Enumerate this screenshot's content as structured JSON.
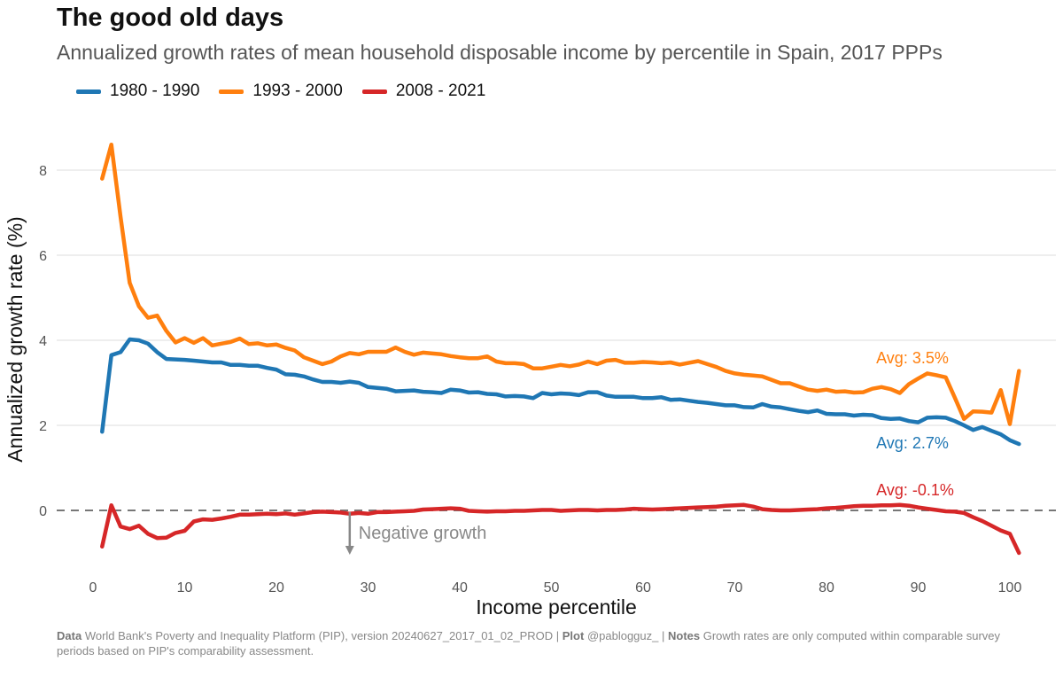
{
  "title": "The good old days",
  "subtitle": "Annualized growth rates of mean household disposable income by percentile in Spain, 2017 PPPs",
  "caption": {
    "data_label": "Data",
    "data_text": "World Bank's Poverty and Inequality Platform (PIP), version 20240627_2017_01_02_PROD |",
    "plot_label": "Plot",
    "plot_text": "@pablogguz_ |",
    "notes_label": "Notes",
    "notes_text": "Growth rates are only computed within comparable survey periods based on PIP's comparability assessment."
  },
  "chart_data": {
    "type": "line",
    "xlabel": "Income percentile",
    "ylabel": "Annualized growth rate (%)",
    "xlim": [
      0,
      100
    ],
    "ylim": [
      -1.2,
      9
    ],
    "xticks": [
      0,
      10,
      20,
      30,
      40,
      50,
      60,
      70,
      80,
      90,
      100
    ],
    "yticks": [
      0,
      2,
      4,
      6,
      8
    ],
    "grid": "horizontal",
    "legend": "top-left",
    "reference_line": {
      "y": 0,
      "style": "dashed"
    },
    "annotation": {
      "text": "Negative growth",
      "x": 28,
      "y_from": 0,
      "y_to": -1
    },
    "series": [
      {
        "name": "1980 - 1990",
        "color": "#1f77b4",
        "label": "Avg: 2.7%",
        "values": [
          1.85,
          3.65,
          3.72,
          4.02,
          4.0,
          3.92,
          3.72,
          3.56,
          3.55,
          3.54,
          3.52,
          3.5,
          3.48,
          3.48,
          3.42,
          3.42,
          3.4,
          3.4,
          3.35,
          3.31,
          3.2,
          3.19,
          3.15,
          3.08,
          3.02,
          3.02,
          3.0,
          3.03,
          3.0,
          2.9,
          2.88,
          2.86,
          2.8,
          2.81,
          2.82,
          2.79,
          2.78,
          2.76,
          2.84,
          2.82,
          2.77,
          2.78,
          2.74,
          2.73,
          2.68,
          2.69,
          2.68,
          2.64,
          2.76,
          2.73,
          2.75,
          2.74,
          2.71,
          2.78,
          2.78,
          2.7,
          2.67,
          2.67,
          2.67,
          2.64,
          2.64,
          2.66,
          2.6,
          2.61,
          2.58,
          2.55,
          2.53,
          2.5,
          2.47,
          2.47,
          2.43,
          2.42,
          2.5,
          2.44,
          2.42,
          2.38,
          2.34,
          2.31,
          2.35,
          2.27,
          2.26,
          2.26,
          2.23,
          2.25,
          2.24,
          2.17,
          2.15,
          2.16,
          2.1,
          2.07,
          2.18,
          2.19,
          2.18,
          2.1,
          2.0,
          1.89,
          1.96,
          1.87,
          1.79,
          1.65,
          1.56
        ]
      },
      {
        "name": "1993 - 2000",
        "color": "#ff7f0e",
        "label": "Avg: 3.5%",
        "values": [
          7.8,
          8.6,
          6.9,
          5.35,
          4.8,
          4.53,
          4.58,
          4.22,
          3.95,
          4.05,
          3.94,
          4.05,
          3.88,
          3.92,
          3.96,
          4.04,
          3.91,
          3.93,
          3.88,
          3.9,
          3.82,
          3.76,
          3.6,
          3.52,
          3.44,
          3.5,
          3.62,
          3.7,
          3.67,
          3.73,
          3.73,
          3.73,
          3.83,
          3.73,
          3.66,
          3.71,
          3.69,
          3.67,
          3.63,
          3.6,
          3.58,
          3.58,
          3.62,
          3.5,
          3.46,
          3.46,
          3.44,
          3.34,
          3.34,
          3.38,
          3.42,
          3.39,
          3.43,
          3.5,
          3.44,
          3.52,
          3.54,
          3.47,
          3.47,
          3.49,
          3.48,
          3.46,
          3.48,
          3.43,
          3.47,
          3.51,
          3.44,
          3.37,
          3.28,
          3.22,
          3.19,
          3.17,
          3.15,
          3.07,
          2.99,
          2.99,
          2.91,
          2.84,
          2.81,
          2.84,
          2.79,
          2.8,
          2.77,
          2.78,
          2.86,
          2.9,
          2.85,
          2.76,
          2.97,
          3.1,
          3.22,
          3.18,
          3.13,
          2.65,
          2.15,
          2.33,
          2.32,
          2.3,
          2.83,
          2.03,
          3.28
        ]
      },
      {
        "name": "2008 - 2021",
        "color": "#d62728",
        "label": "Avg: -0.1%",
        "values": [
          -0.85,
          0.12,
          -0.38,
          -0.44,
          -0.36,
          -0.55,
          -0.65,
          -0.64,
          -0.53,
          -0.48,
          -0.26,
          -0.21,
          -0.22,
          -0.19,
          -0.15,
          -0.1,
          -0.1,
          -0.09,
          -0.08,
          -0.09,
          -0.07,
          -0.1,
          -0.07,
          -0.04,
          -0.03,
          -0.04,
          -0.05,
          -0.08,
          -0.06,
          -0.08,
          -0.04,
          -0.04,
          -0.03,
          -0.02,
          -0.01,
          0.02,
          0.03,
          0.04,
          0.05,
          0.04,
          -0.01,
          -0.02,
          -0.03,
          -0.02,
          -0.02,
          -0.01,
          -0.01,
          0.0,
          0.01,
          0.01,
          -0.01,
          0.0,
          0.01,
          0.01,
          0.0,
          0.01,
          0.01,
          0.02,
          0.04,
          0.03,
          0.02,
          0.03,
          0.04,
          0.05,
          0.06,
          0.07,
          0.08,
          0.09,
          0.11,
          0.12,
          0.13,
          0.09,
          0.03,
          0.01,
          0.0,
          0.0,
          0.01,
          0.02,
          0.03,
          0.05,
          0.06,
          0.08,
          0.1,
          0.11,
          0.11,
          0.12,
          0.12,
          0.13,
          0.11,
          0.07,
          0.04,
          0.01,
          -0.02,
          -0.03,
          -0.06,
          -0.16,
          -0.25,
          -0.36,
          -0.47,
          -0.55,
          -1.0
        ]
      }
    ]
  }
}
